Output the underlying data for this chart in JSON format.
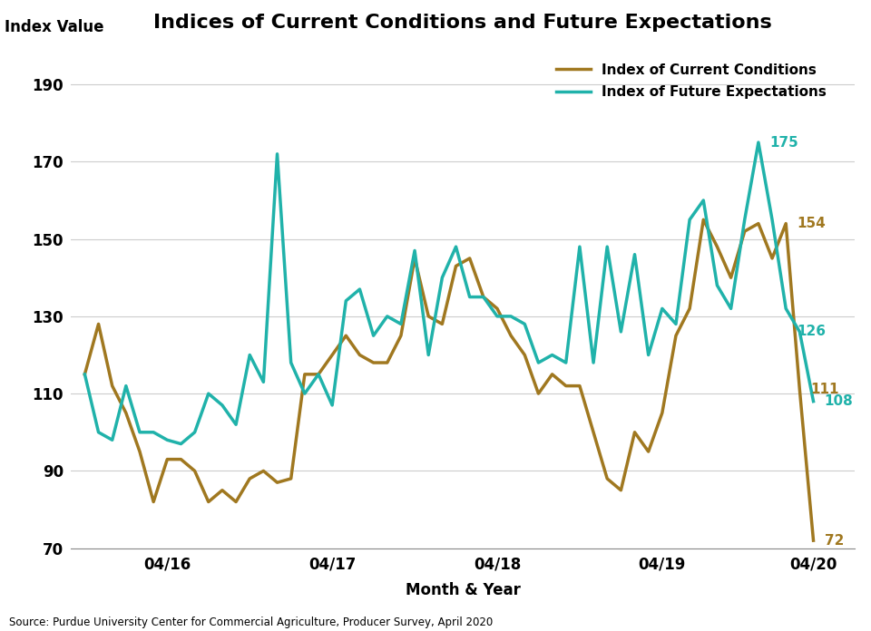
{
  "title": "Indices of Current Conditions and Future Expectations",
  "xlabel": "Month & Year",
  "ylabel": "Index Value",
  "source": "Source: Purdue University Center for Commercial Agriculture, Producer Survey, April 2020",
  "ylim": [
    70,
    200
  ],
  "yticks": [
    70,
    90,
    110,
    130,
    150,
    170,
    190
  ],
  "xtick_labels": [
    "04/16",
    "04/17",
    "04/18",
    "04/19",
    "04/20"
  ],
  "xtick_positions": [
    6,
    18,
    30,
    42,
    53
  ],
  "xlim": [
    -1,
    56
  ],
  "current_conditions_color": "#A07820",
  "future_expectations_color": "#20B2AA",
  "current_conditions_label": "Index of Current Conditions",
  "future_expectations_label": "Index of Future Expectations",
  "current_conditions": [
    115,
    128,
    112,
    105,
    95,
    82,
    93,
    93,
    90,
    82,
    85,
    82,
    88,
    90,
    87,
    88,
    115,
    115,
    120,
    125,
    120,
    118,
    118,
    125,
    145,
    130,
    128,
    143,
    145,
    135,
    132,
    125,
    120,
    110,
    115,
    112,
    112,
    100,
    88,
    85,
    100,
    95,
    105,
    125,
    132,
    155,
    148,
    140,
    152,
    154,
    145,
    154,
    111,
    72
  ],
  "future_expectations": [
    115,
    100,
    98,
    112,
    100,
    100,
    98,
    97,
    100,
    110,
    107,
    102,
    120,
    113,
    172,
    118,
    110,
    115,
    107,
    134,
    137,
    125,
    130,
    128,
    147,
    120,
    140,
    148,
    135,
    135,
    130,
    130,
    128,
    118,
    120,
    118,
    148,
    118,
    148,
    126,
    146,
    120,
    132,
    128,
    155,
    160,
    138,
    132,
    155,
    175,
    155,
    132,
    126,
    108
  ],
  "n_points": 54,
  "linewidth": 2.5,
  "grid_color": "#cccccc",
  "grid_linewidth": 0.8,
  "title_fontsize": 16,
  "axis_label_fontsize": 12,
  "tick_fontsize": 12,
  "legend_fontsize": 11,
  "annotation_fontsize": 11,
  "source_fontsize": 8.5
}
